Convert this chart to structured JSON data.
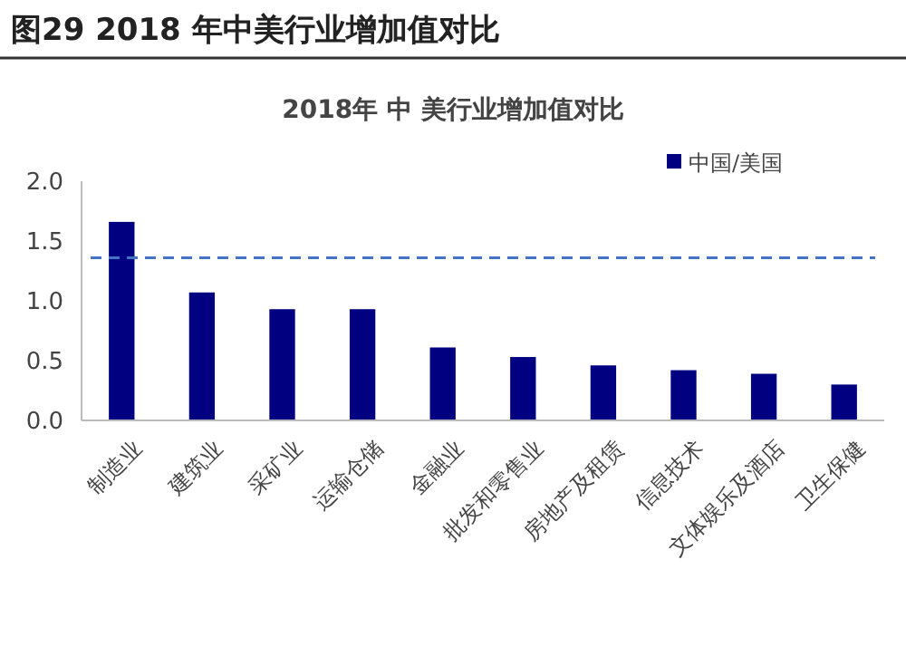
{
  "chart_data": {
    "type": "bar",
    "title": "图29 2018 年中美行业增加值对比",
    "subtitle": "2018年 中 美行业增加值对比",
    "categories": [
      "制造业",
      "建筑业",
      "采矿业",
      "运输仓储",
      "金融业",
      "批发和零售业",
      "房地产及租赁",
      "信息技术",
      "文体娱乐及酒店",
      "卫生保健"
    ],
    "series": [
      {
        "name": "中国/美国",
        "color": "#000080",
        "values": [
          1.66,
          1.07,
          0.93,
          0.93,
          0.61,
          0.53,
          0.46,
          0.42,
          0.39,
          0.3
        ]
      }
    ],
    "ylim": [
      0,
      2
    ],
    "yticks": [
      {
        "value": 0,
        "label": "0.0"
      },
      {
        "value": 0.5,
        "label": "0.5"
      },
      {
        "value": 1,
        "label": "1.0"
      },
      {
        "value": 1.5,
        "label": "1.5"
      },
      {
        "value": 2,
        "label": "2.0"
      }
    ],
    "ref_lines": [
      {
        "axis": "y",
        "value": 1.36,
        "color": "#4472c4",
        "line_style": "dashed"
      }
    ],
    "legend": "top right",
    "grid": false
  }
}
